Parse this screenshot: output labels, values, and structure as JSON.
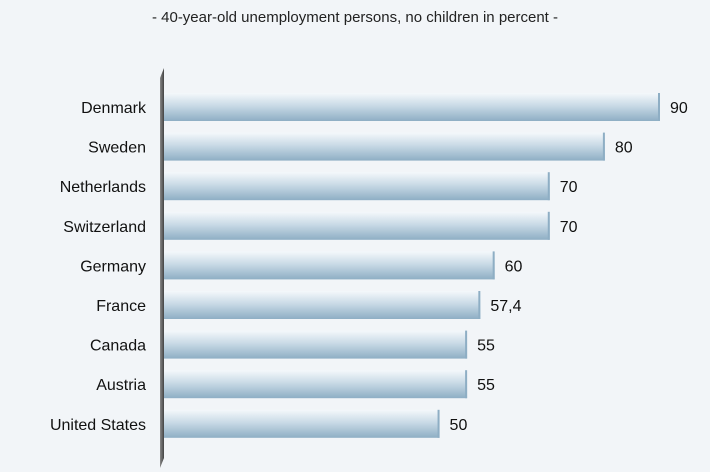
{
  "chart_data": {
    "type": "bar",
    "orientation": "horizontal",
    "subtitle": "- 40-year-old unemployment persons, no children in percent -",
    "categories": [
      "Denmark",
      "Sweden",
      "Netherlands",
      "Switzerland",
      "Germany",
      "France",
      "Canada",
      "Austria",
      "United States"
    ],
    "values": [
      90,
      80,
      70,
      70,
      60,
      57.4,
      55,
      55,
      50
    ],
    "value_labels": [
      "90",
      "80",
      "70",
      "70",
      "60",
      "57,4",
      "55",
      "55",
      "50"
    ],
    "xlim": [
      0,
      90
    ],
    "grid": false,
    "legend": "none",
    "colors": {
      "background": "#f2f5f8",
      "bar_light": "#f4f8fb",
      "bar_mid": "#c9dae6",
      "bar_dark": "#8eaec4",
      "axis": "#555555"
    }
  }
}
